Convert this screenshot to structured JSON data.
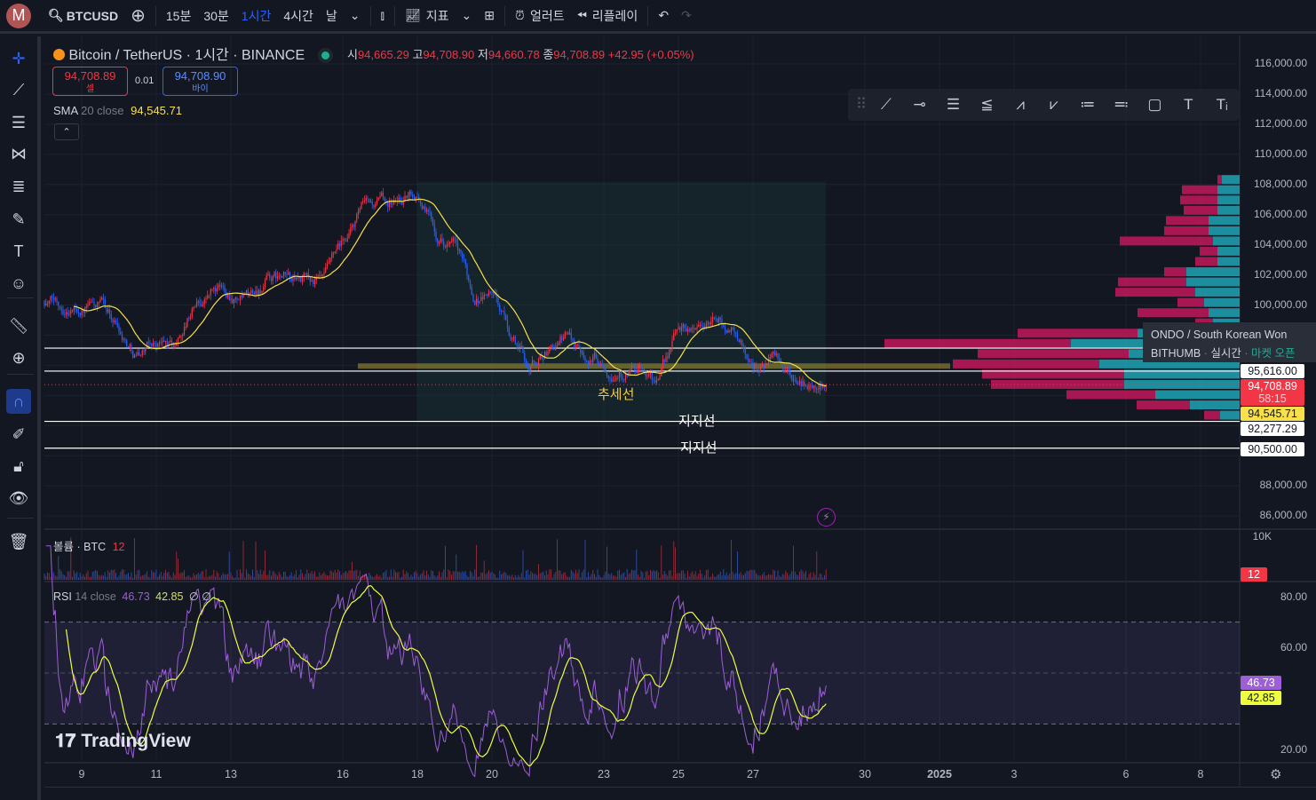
{
  "topbar": {
    "avatar": "M",
    "symbol": "BTCUSD",
    "timeframes": [
      "15분",
      "30분",
      "1시간",
      "4시간",
      "날"
    ],
    "active_timeframe": "1시간",
    "indicators": "지표",
    "alert": "얼러트",
    "replay": "리플레이"
  },
  "legend": {
    "title": "Bitcoin / TetherUS · 1시간 · BINANCE",
    "o_label": "시",
    "o": "94,665.29",
    "h_label": "고",
    "h": "94,708.90",
    "l_label": "저",
    "l": "94,660.78",
    "c_label": "종",
    "c": "94,708.89",
    "change": "+42.95 (+0.05%)",
    "sell_price": "94,708.89",
    "sell_label": "셀",
    "spread": "0.01",
    "buy_price": "94,708.90",
    "buy_label": "바이",
    "sma": {
      "name": "SMA",
      "params": "20 close",
      "value": "94,545.71"
    }
  },
  "volume_legend": {
    "name": "볼륨 · BTC",
    "value": "12"
  },
  "rsi_legend": {
    "name": "RSI",
    "params": "14 close",
    "value": "46.73",
    "ma": "42.85",
    "na1": "∅",
    "na2": "∅"
  },
  "drawings": {
    "trend_label": "추세선",
    "support1": "지지선",
    "support2": "지지선"
  },
  "tooltip": {
    "line1": "ONDO / South Korean Won",
    "exchange": "BITHUMB",
    "mode": "실시간",
    "status": "마켓 오픈"
  },
  "price_axis": [
    "116,000.00",
    "114,000.00",
    "112,000.00",
    "110,000.00",
    "108,000.00",
    "106,000.00",
    "104,000.00",
    "102,000.00",
    "100,000.00",
    "88,000.00",
    "86,000.00"
  ],
  "price_tags": {
    "line1": "95,616.00",
    "last": "94,708.89",
    "countdown": "58:15",
    "sma": "94,545.71",
    "line2": "92,277.29",
    "line3": "90,500.00"
  },
  "volume_axis": {
    "top": "10K",
    "tag": "12"
  },
  "rsi_axis": {
    "a80": "80.00",
    "a60": "60.00",
    "a20": "20.00",
    "rsi": "46.73",
    "ma": "42.85"
  },
  "time_axis": [
    "9",
    "11",
    "13",
    "16",
    "18",
    "20",
    "23",
    "25",
    "27",
    "30",
    "2025",
    "3",
    "6",
    "8"
  ],
  "watermark": "TradingView",
  "colors": {
    "up": "#f23645",
    "down": "#2962ff",
    "sma": "#f7e04b",
    "rsi": "#9c5fd6",
    "accent": "#2962ff"
  },
  "chart_data": {
    "price_path": [
      [
        8.0,
        100300
      ],
      [
        8.6,
        100000
      ],
      [
        9.5,
        99800
      ],
      [
        10.0,
        98500
      ],
      [
        10.4,
        97000
      ],
      [
        11.0,
        97500
      ],
      [
        11.5,
        97200
      ],
      [
        12.0,
        100000
      ],
      [
        12.5,
        101000
      ],
      [
        13.0,
        100800
      ],
      [
        13.5,
        100200
      ],
      [
        14.0,
        101500
      ],
      [
        15.0,
        101600
      ],
      [
        15.5,
        101400
      ],
      [
        16.0,
        103500
      ],
      [
        16.5,
        106000
      ],
      [
        17.0,
        106500
      ],
      [
        17.5,
        107000
      ],
      [
        18.0,
        107500
      ],
      [
        18.5,
        105000
      ],
      [
        19.0,
        104000
      ],
      [
        19.5,
        100500
      ],
      [
        20.0,
        101000
      ],
      [
        20.5,
        98000
      ],
      [
        21.0,
        96000
      ],
      [
        21.5,
        97000
      ],
      [
        22.0,
        98000
      ],
      [
        22.5,
        97000
      ],
      [
        23.0,
        96500
      ],
      [
        23.5,
        96000
      ],
      [
        24.0,
        95500
      ],
      [
        24.5,
        94800
      ],
      [
        25.0,
        98500
      ],
      [
        25.5,
        98800
      ],
      [
        26.0,
        99000
      ],
      [
        26.5,
        98500
      ],
      [
        27.0,
        96000
      ],
      [
        27.5,
        96500
      ],
      [
        28.0,
        95000
      ],
      [
        28.5,
        94600
      ],
      [
        29.0,
        94708.89
      ]
    ],
    "horizontal_lines": [
      97140,
      95616,
      92277.29,
      90500
    ],
    "volume_profile": [
      [
        108300,
        5,
        20
      ],
      [
        107620,
        40,
        25
      ],
      [
        106940,
        42,
        25
      ],
      [
        106260,
        38,
        25
      ],
      [
        105580,
        48,
        35
      ],
      [
        104900,
        50,
        35
      ],
      [
        104220,
        105,
        30
      ],
      [
        103540,
        20,
        25
      ],
      [
        102860,
        25,
        25
      ],
      [
        102180,
        25,
        60
      ],
      [
        101500,
        77,
        60
      ],
      [
        100820,
        90,
        50
      ],
      [
        100140,
        30,
        40
      ],
      [
        99460,
        80,
        35
      ],
      [
        98780,
        20,
        30
      ],
      [
        98100,
        135,
        115
      ],
      [
        97420,
        210,
        190
      ],
      [
        96740,
        170,
        125
      ],
      [
        96060,
        165,
        158
      ],
      [
        95380,
        160,
        130
      ],
      [
        94700,
        150,
        130
      ],
      [
        94020,
        100,
        95
      ],
      [
        93340,
        60,
        56
      ],
      [
        92660,
        18,
        22
      ]
    ]
  }
}
